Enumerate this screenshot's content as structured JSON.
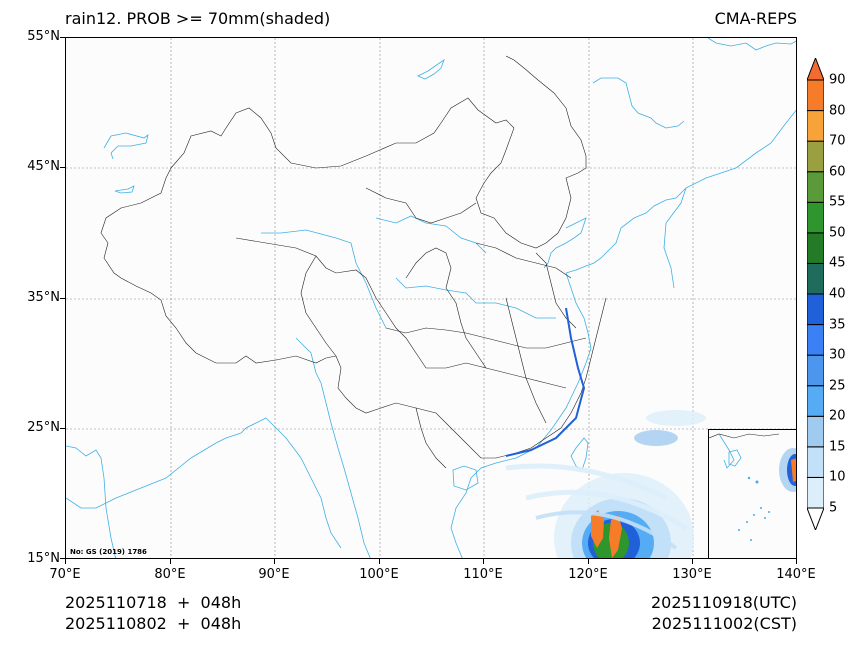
{
  "header": {
    "title_left": "rain12. PROB >= 70mm(shaded)",
    "title_right": "CMA-REPS"
  },
  "footer": {
    "left_line1": "2025110718  +  048h",
    "left_line2": "2025110802  +  048h",
    "right_line1": "2025110918(UTC)",
    "right_line2": "2025111002(CST)"
  },
  "map": {
    "watermark": "No: GS (2019) 1786",
    "extent": {
      "lon": [
        70,
        140
      ],
      "lat": [
        15,
        55
      ]
    },
    "gridlines": "dotted gray",
    "coastline_color": "#33aadd",
    "border_color": "#000000",
    "inset": "South China Sea inset (lower right)"
  },
  "chart_data": {
    "type": "heatmap",
    "title": "rain12. PROB >= 70mm(shaded)",
    "subtitle": "CMA-REPS",
    "xlabel": "",
    "ylabel": "",
    "x_ticks": [
      "70°E",
      "80°E",
      "90°E",
      "100°E",
      "110°E",
      "120°E",
      "130°E",
      "140°E"
    ],
    "y_ticks": [
      "15°N",
      "25°N",
      "35°N",
      "45°N",
      "55°N"
    ],
    "xlim": [
      70,
      140
    ],
    "ylim": [
      15,
      55
    ],
    "grid": true,
    "colorbar": {
      "levels": [
        5,
        10,
        15,
        20,
        25,
        30,
        35,
        40,
        45,
        50,
        55,
        60,
        70,
        80,
        90
      ],
      "colors": [
        "#dceefa",
        "#c2e0f7",
        "#a0cbf0",
        "#55acf5",
        "#4c96ee",
        "#3c80f5",
        "#2060d8",
        "#1f6b5c",
        "#257a28",
        "#2f962e",
        "#5a9a3a",
        "#9aa040",
        "#f8a23a",
        "#f77c2a",
        "#f26b32"
      ],
      "extend": "both",
      "position": "right"
    },
    "features": [
      {
        "name": "typhoon rain band",
        "center_lon": 121.5,
        "center_lat": 16.5,
        "max_prob": 90,
        "note": "spiral bands of low probability (5-20%) extending NE to ~25°N, core 60-90% near Luzon"
      },
      {
        "name": "coastal scattered",
        "region": "SE China coast & Taiwan",
        "max_prob": 15
      }
    ]
  }
}
